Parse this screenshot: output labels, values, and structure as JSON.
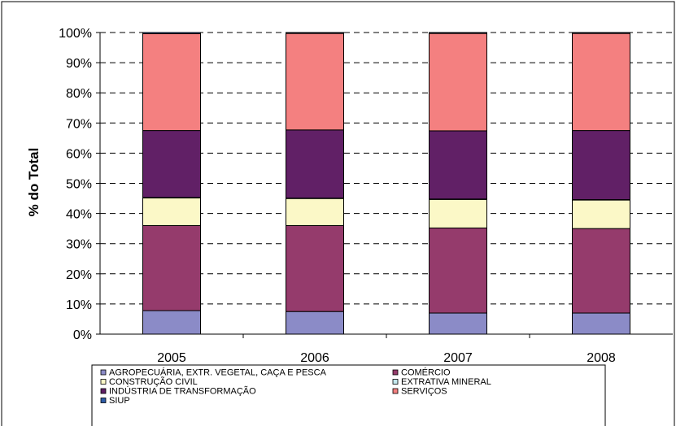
{
  "chart_data": {
    "type": "bar",
    "stacked": "percent",
    "ylabel": "% do Total",
    "xlabel": "",
    "ylim": [
      0,
      100
    ],
    "yticks": [
      "0%",
      "10%",
      "20%",
      "30%",
      "40%",
      "50%",
      "60%",
      "70%",
      "80%",
      "90%",
      "100%"
    ],
    "grid": true,
    "legend_position": "bottom",
    "categories": [
      "2005",
      "2006",
      "2007",
      "2008"
    ],
    "series": [
      {
        "name": "AGROPECUÁRIA, EXTR. VEGETAL, CAÇA E PESCA",
        "color": "#8B8BC7",
        "values": [
          7.8,
          7.5,
          7.0,
          7.0
        ]
      },
      {
        "name": "COMÉRCIO",
        "color": "#953B6C",
        "values": [
          28.2,
          28.5,
          28.2,
          28.0
        ]
      },
      {
        "name": "CONSTRUÇÃO CIVIL",
        "color": "#FBF8C7",
        "values": [
          9.2,
          9.0,
          9.5,
          9.5
        ]
      },
      {
        "name": "EXTRATIVA MINERAL",
        "color": "#C4E8EE",
        "values": [
          0.1,
          0.1,
          0.1,
          0.1
        ]
      },
      {
        "name": "INDÚSTRIA DE TRANSFORMAÇÃO",
        "color": "#612066",
        "values": [
          22.2,
          22.6,
          22.6,
          22.9
        ]
      },
      {
        "name": "SERVIÇOS",
        "color": "#F48080",
        "values": [
          32.1,
          32.0,
          32.3,
          32.2
        ]
      },
      {
        "name": "SIUP",
        "color": "#2F5DA8",
        "values": [
          0.4,
          0.3,
          0.3,
          0.3
        ]
      }
    ]
  }
}
